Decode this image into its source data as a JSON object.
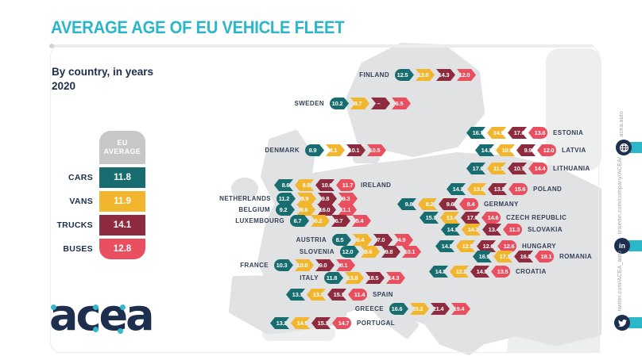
{
  "header": {
    "title": "AVERAGE AGE OF EU VEHICLE FLEET",
    "subtitle_line1": "By country, in years",
    "subtitle_line2": "2020"
  },
  "legend": {
    "header_line1": "EU",
    "header_line2": "AVERAGE"
  },
  "logo_text": "acea",
  "sidebar": {
    "items": [
      {
        "icon": "globe-icon",
        "label": "acea.auto"
      },
      {
        "icon": "linkedin-icon",
        "label": "linkedin.com/company/ACEA/"
      },
      {
        "icon": "twitter-icon",
        "label": "twitter.com/ACEA_auto"
      }
    ]
  },
  "colors": {
    "title_teal": "#2bb6c9",
    "navy": "#1d2e4e",
    "cars": "#176d6f",
    "vans": "#f2b52e",
    "trucks": "#8f2b3f",
    "buses": "#e94f5e",
    "legend_gray": "#c6c7c9",
    "map_gray": "#e1e2e3",
    "map_light": "#edeeee",
    "sidebar_teal": "#2ab7c9"
  },
  "chart_data": {
    "type": "map-bar",
    "title": "AVERAGE AGE OF EU VEHICLE FLEET",
    "subtitle": "By country, in years 2020",
    "categories": [
      "CARS",
      "VANS",
      "TRUCKS",
      "BUSES"
    ],
    "eu_average": [
      11.8,
      11.9,
      14.1,
      12.8
    ],
    "missing_value_symbol": "–",
    "countries": [
      {
        "name": "FINLAND",
        "values": [
          12.5,
          13.0,
          14.3,
          12.0
        ]
      },
      {
        "name": "SWEDEN",
        "values": [
          10.2,
          8.7,
          null,
          6.5
        ]
      },
      {
        "name": "ESTONIA",
        "values": [
          16.7,
          14.9,
          17.6,
          13.6
        ]
      },
      {
        "name": "LATVIA",
        "values": [
          14.3,
          10.0,
          9.9,
          12.0
        ]
      },
      {
        "name": "DENMARK",
        "values": [
          8.9,
          8.1,
          10.1,
          10.5
        ]
      },
      {
        "name": "LITHUANIA",
        "values": [
          17.0,
          11.9,
          10.7,
          14.4
        ]
      },
      {
        "name": "IRELAND",
        "values": [
          8.6,
          8.8,
          10.6,
          11.7
        ]
      },
      {
        "name": "POLAND",
        "values": [
          14.3,
          13.6,
          13.2,
          15.6
        ]
      },
      {
        "name": "NETHERLANDS",
        "values": [
          11.2,
          9.9,
          9.8,
          9.3
        ]
      },
      {
        "name": "GERMANY",
        "values": [
          9.8,
          8.2,
          9.6,
          8.4
        ]
      },
      {
        "name": "BELGIUM",
        "values": [
          9.2,
          8.6,
          16.0,
          11.1
        ]
      },
      {
        "name": "CZECH REPUBLIC",
        "values": [
          15.3,
          13.4,
          17.6,
          14.6
        ]
      },
      {
        "name": "LUXEMBOURG",
        "values": [
          6.7,
          6.2,
          6.7,
          5.4
        ]
      },
      {
        "name": "SLOVAKIA",
        "values": [
          14.3,
          14.7,
          13.4,
          11.3
        ]
      },
      {
        "name": "AUSTRIA",
        "values": [
          8.5,
          6.4,
          7.0,
          4.9
        ]
      },
      {
        "name": "HUNGARY",
        "values": [
          14.2,
          12.5,
          12.6,
          12.6
        ]
      },
      {
        "name": "SLOVENIA",
        "values": [
          12.0,
          9.6,
          9.8,
          10.1
        ]
      },
      {
        "name": "ROMANIA",
        "values": [
          16.9,
          17.1,
          16.8,
          18.1
        ]
      },
      {
        "name": "FRANCE",
        "values": [
          10.3,
          10.0,
          9.0,
          8.1
        ]
      },
      {
        "name": "CROATIA",
        "values": [
          14.8,
          12.2,
          14.5,
          13.5
        ]
      },
      {
        "name": "ITALY",
        "values": [
          11.8,
          13.8,
          18.5,
          14.3
        ]
      },
      {
        "name": "SPAIN",
        "values": [
          13.1,
          13.3,
          15.1,
          11.4
        ]
      },
      {
        "name": "GREECE",
        "values": [
          16.6,
          20.2,
          21.4,
          19.4
        ]
      },
      {
        "name": "PORTUGAL",
        "values": [
          13.2,
          14.9,
          15.1,
          14.7
        ]
      }
    ]
  }
}
